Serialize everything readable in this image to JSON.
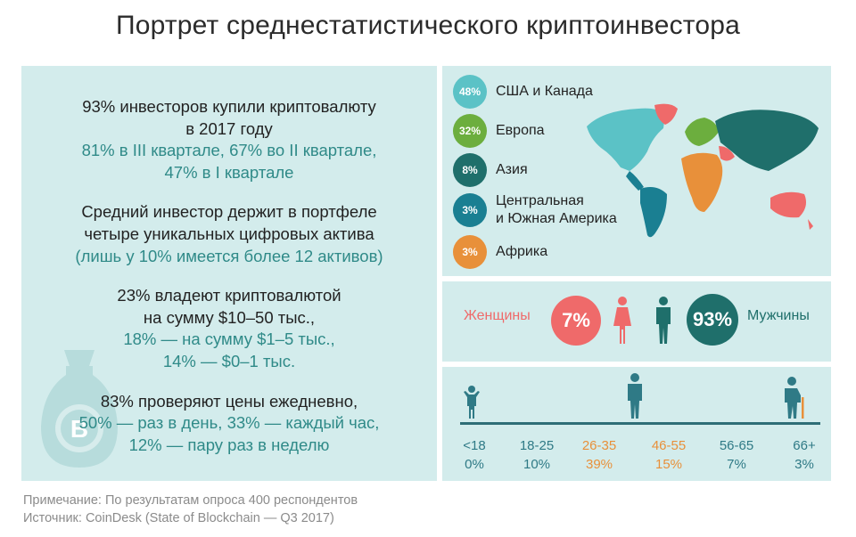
{
  "title": "Портрет среднестатистического криптоинвестора",
  "stats": [
    {
      "lines": [
        {
          "text": "93% инвесторов купили криптовалюту",
          "style": "dark"
        },
        {
          "text": "в 2017 году",
          "style": "dark"
        },
        {
          "text": "81% в III квартале, 67% во II квартале,",
          "style": "teal"
        },
        {
          "text": "47% в I квартале",
          "style": "teal"
        }
      ]
    },
    {
      "lines": [
        {
          "text": "Средний инвестор держит в портфеле",
          "style": "dark"
        },
        {
          "text": "четыре уникальных цифровых актива",
          "style": "dark"
        },
        {
          "text": "(лишь у 10% имеется более 12 активов)",
          "style": "teal"
        }
      ]
    },
    {
      "lines": [
        {
          "text": "23% владеют криптовалютой",
          "style": "dark"
        },
        {
          "text": "на сумму $10–50 тыс.,",
          "style": "dark"
        },
        {
          "text": "18% — на сумму $1–5 тыс.,",
          "style": "teal"
        },
        {
          "text": "14% — $0–1 тыс.",
          "style": "teal"
        }
      ]
    },
    {
      "lines": [
        {
          "text": "83% проверяют цены ежедневно,",
          "style": "dark"
        },
        {
          "text": "50% — раз в день, 33% — каждый час,",
          "style": "teal"
        },
        {
          "text": "12% — пару раз в неделю",
          "style": "teal"
        }
      ]
    }
  ],
  "regions": [
    {
      "pct": "48%",
      "label": "США и Канада",
      "color": "#5bc2c6"
    },
    {
      "pct": "32%",
      "label": "Европа",
      "color": "#6cae3e"
    },
    {
      "pct": "8%",
      "label": "Азия",
      "color": "#1f6f6b"
    },
    {
      "pct": "3%",
      "label": "Центральная\nи Южная Америка",
      "color": "#1a7f92"
    },
    {
      "pct": "3%",
      "label": "Африка",
      "color": "#e8903a"
    }
  ],
  "gender": {
    "women_label": "Женщины",
    "women_pct": "7%",
    "women_color": "#ef6a6a",
    "men_label": "Мужчины",
    "men_pct": "93%",
    "men_color": "#1f6f6b"
  },
  "ages": [
    {
      "range": "<18",
      "pct": "0%",
      "color": "#2f7a86"
    },
    {
      "range": "18-25",
      "pct": "10%",
      "color": "#2f7a86"
    },
    {
      "range": "26-35",
      "pct": "39%",
      "color": "#e8903a"
    },
    {
      "range": "46-55",
      "pct": "15%",
      "color": "#e8903a"
    },
    {
      "range": "56-65",
      "pct": "7%",
      "color": "#2f7a86"
    },
    {
      "range": "66+",
      "pct": "3%",
      "color": "#2f7a86"
    }
  ],
  "bag_symbol": "B",
  "source": {
    "note": "Примечание: По результатам опроса 400 респондентов",
    "src": "Источник: CoinDesk (State of Blockchain — Q3 2017)"
  }
}
